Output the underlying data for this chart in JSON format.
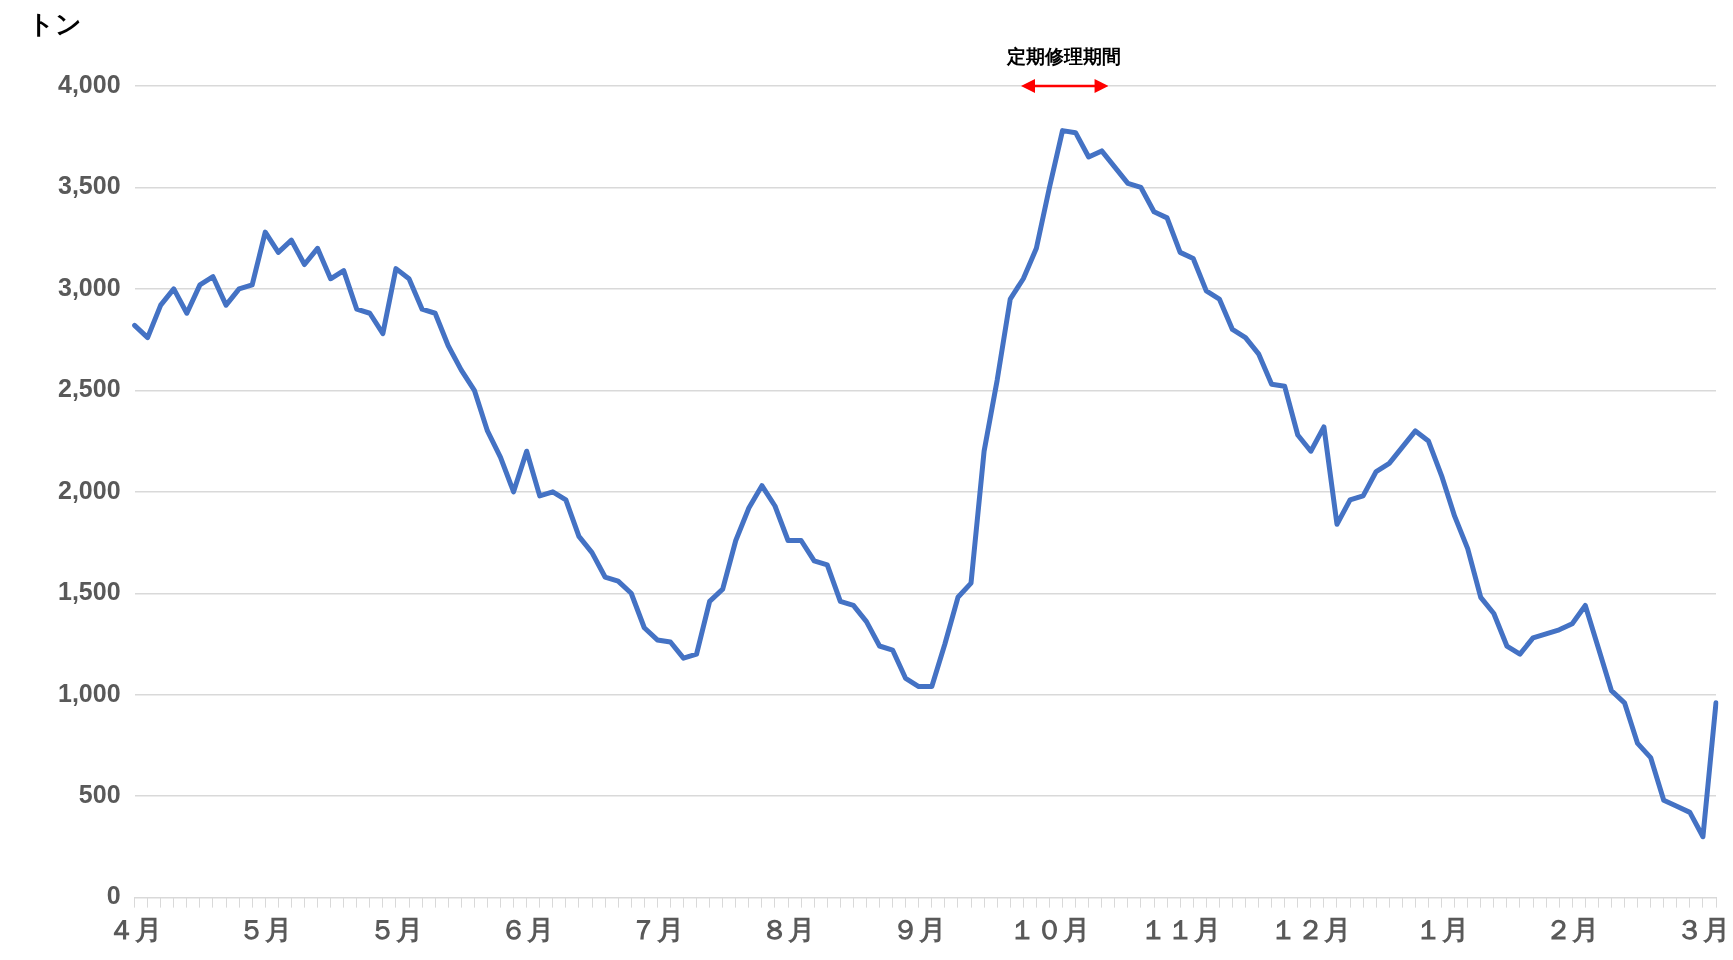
{
  "chart_data": {
    "type": "line",
    "ylabel": "トン",
    "annotations": [
      "定期修理期間"
    ],
    "categories": [
      "４月",
      null,
      null,
      null,
      null,
      null,
      null,
      null,
      null,
      null,
      "５月",
      null,
      null,
      null,
      null,
      null,
      null,
      null,
      null,
      null,
      "５月",
      null,
      null,
      null,
      null,
      null,
      null,
      null,
      null,
      null,
      "６月",
      null,
      null,
      null,
      null,
      null,
      null,
      null,
      null,
      null,
      "７月",
      null,
      null,
      null,
      null,
      null,
      null,
      null,
      null,
      null,
      "８月",
      null,
      null,
      null,
      null,
      null,
      null,
      null,
      null,
      null,
      "９月",
      null,
      null,
      null,
      null,
      null,
      null,
      null,
      null,
      null,
      "１０月",
      null,
      null,
      null,
      null,
      null,
      null,
      null,
      null,
      null,
      "１１月",
      null,
      null,
      null,
      null,
      null,
      null,
      null,
      null,
      null,
      "１２月",
      null,
      null,
      null,
      null,
      null,
      null,
      null,
      null,
      null,
      "１月",
      null,
      null,
      null,
      null,
      null,
      null,
      null,
      null,
      null,
      "２月",
      null,
      null,
      null,
      null,
      null,
      null,
      null,
      null,
      null,
      "３月",
      null
    ],
    "series": [
      {
        "color": "#4472c4",
        "values": [
          2820,
          2760,
          2920,
          3000,
          2880,
          3020,
          3060,
          2920,
          3000,
          3020,
          3280,
          3180,
          3240,
          3120,
          3200,
          3050,
          3090,
          2900,
          2880,
          2780,
          3100,
          3050,
          2900,
          2880,
          2720,
          2600,
          2500,
          2300,
          2170,
          2000,
          2200,
          1980,
          2000,
          1960,
          1780,
          1700,
          1580,
          1560,
          1500,
          1330,
          1270,
          1260,
          1180,
          1200,
          1460,
          1520,
          1760,
          1920,
          2030,
          1930,
          1760,
          1760,
          1660,
          1640,
          1460,
          1440,
          1360,
          1240,
          1220,
          1080,
          1040,
          1040,
          1250,
          1480,
          1550,
          2200,
          2550,
          2950,
          3050,
          3200,
          3500,
          3780,
          3770,
          3650,
          3680,
          3600,
          3520,
          3500,
          3380,
          3350,
          3180,
          3150,
          2990,
          2950,
          2800,
          2760,
          2680,
          2530,
          2520,
          2280,
          2200,
          2320,
          1840,
          1960,
          1980,
          2100,
          2140,
          2220,
          2300,
          2250,
          2080,
          1880,
          1720,
          1480,
          1400,
          1240,
          1200,
          1280,
          1300,
          1320,
          1350,
          1440,
          1230,
          1020,
          960,
          760,
          690,
          480,
          450,
          420,
          300,
          960
        ]
      }
    ],
    "ylim": [
      0,
      4000
    ],
    "yticks": [
      0,
      {
        "value": 500,
        "label": "500"
      },
      {
        "value": 1000,
        "label": "1,000"
      },
      {
        "value": 1500,
        "label": "1,500"
      },
      {
        "value": 2000,
        "label": "2,000"
      },
      {
        "value": 2500,
        "label": "2,500"
      },
      {
        "value": 3000,
        "label": "3,000"
      },
      {
        "value": 3500,
        "label": "3,500"
      },
      {
        "value": 4000,
        "label": "4,000"
      }
    ],
    "grid": "y",
    "legend": false,
    "marker": "none",
    "line_style": "solid"
  }
}
